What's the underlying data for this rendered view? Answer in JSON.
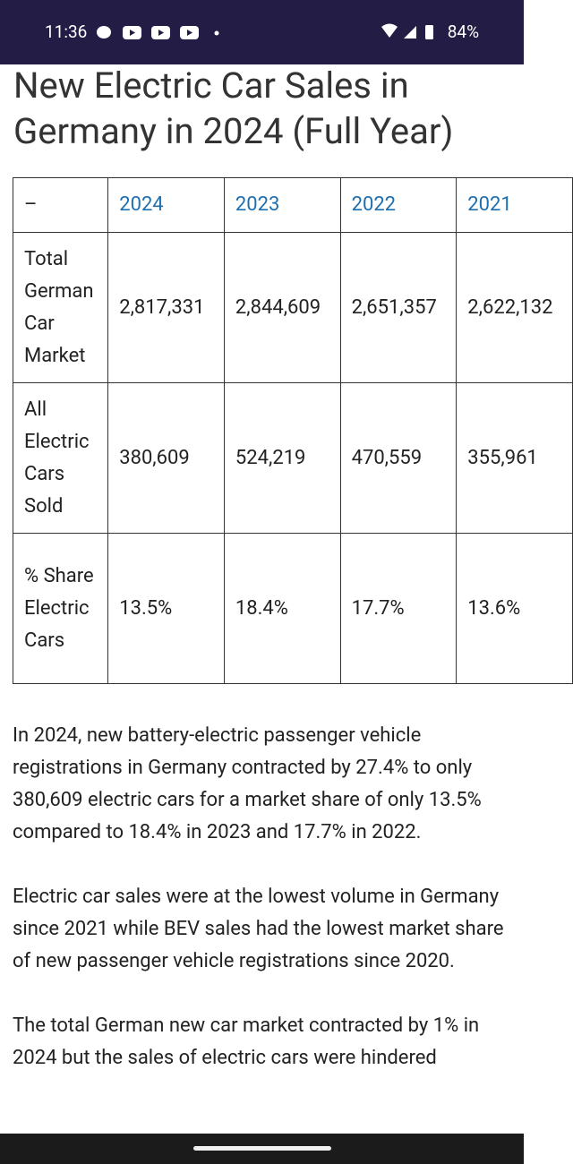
{
  "status_bar": {
    "time": "11:36",
    "battery": "84%"
  },
  "article": {
    "title": "New Electric Car Sales in Germany in 2024 (Full Year)",
    "table": {
      "header": [
        "–",
        "2024",
        "2023",
        "2022",
        "2021"
      ],
      "rows": [
        [
          "Total German Car Market",
          "2,817,331",
          "2,844,609",
          "2,651,357",
          "2,622,132"
        ],
        [
          "All Electric Cars Sold",
          "380,609",
          "524,219",
          "470,559",
          "355,961"
        ],
        [
          "% Share Electric Cars",
          "13.5%",
          "18.4%",
          "17.7%",
          "13.6%"
        ]
      ]
    },
    "paragraphs": [
      "In 2024, new battery-electric passenger vehicle registrations in Germany contracted by 27.4% to only 380,609 electric cars for a market share of only 13.5% compared to 18.4% in 2023 and 17.7% in 2022.",
      "Electric car sales were at the lowest volume in Germany since 2021 while BEV sales had the lowest market share of new passenger vehicle registrations since 2020.",
      "The total German new car market contracted by 1% in 2024 but the sales of electric cars were hindered"
    ]
  }
}
